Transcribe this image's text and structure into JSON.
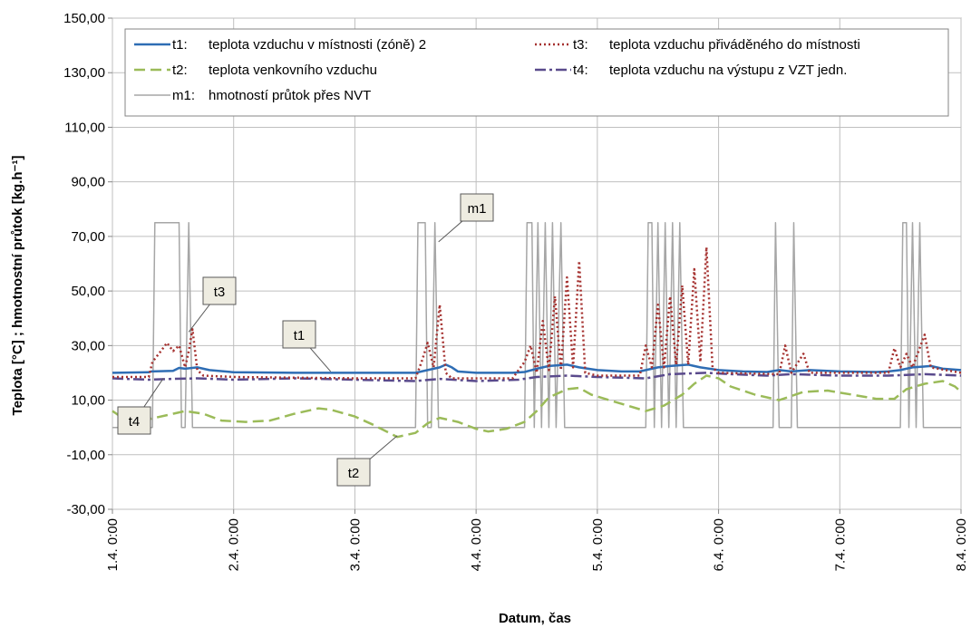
{
  "chart_data": {
    "type": "line",
    "xlabel": "Datum, čas",
    "ylabel": "Teplota [°C] ; hmotnostní průtok [kg.h⁻¹]",
    "ylim": [
      -30,
      150
    ],
    "xlim": [
      0,
      7
    ],
    "y_ticks": [
      "-30,00",
      "-10,00",
      "10,00",
      "30,00",
      "50,00",
      "70,00",
      "90,00",
      "110,00",
      "130,00",
      "150,00"
    ],
    "x_ticks": [
      "1.4.  0:00",
      "2.4.  0:00",
      "3.4.  0:00",
      "4.4.  0:00",
      "5.4.  0:00",
      "6.4.  0:00",
      "7.4.  0:00",
      "8.4.  0:00"
    ],
    "x_unit_note": "x values are days elapsed from 1.4. 0:00",
    "grid": true,
    "legend_position": "top",
    "colors": {
      "t1": "#2e6db4",
      "t2": "#9bbb59",
      "t3": "#a5312f",
      "t4": "#5a4a8c",
      "m1": "#a6a6a6"
    },
    "series": [
      {
        "key": "t1",
        "name": "teplota vzduchu v místnosti (zóně) 2",
        "legend_label": "t1:",
        "style": "solid",
        "points": [
          [
            0,
            20
          ],
          [
            0.3,
            20.2
          ],
          [
            0.32,
            20.5
          ],
          [
            0.5,
            20.7
          ],
          [
            0.55,
            21.8
          ],
          [
            0.6,
            21.5
          ],
          [
            0.7,
            22
          ],
          [
            0.8,
            21
          ],
          [
            1,
            20.2
          ],
          [
            1.5,
            20
          ],
          [
            2,
            20
          ],
          [
            2.5,
            20
          ],
          [
            2.55,
            20.5
          ],
          [
            2.7,
            22
          ],
          [
            2.75,
            23
          ],
          [
            2.8,
            22
          ],
          [
            2.85,
            20.5
          ],
          [
            3,
            20
          ],
          [
            3.3,
            20
          ],
          [
            3.4,
            20.3
          ],
          [
            3.5,
            21.5
          ],
          [
            3.6,
            22.5
          ],
          [
            3.75,
            23
          ],
          [
            3.85,
            22
          ],
          [
            4,
            21
          ],
          [
            4.2,
            20.5
          ],
          [
            4.35,
            20.5
          ],
          [
            4.4,
            21
          ],
          [
            4.5,
            22
          ],
          [
            4.6,
            22.5
          ],
          [
            4.75,
            23
          ],
          [
            4.85,
            22
          ],
          [
            5,
            21
          ],
          [
            5.2,
            20.5
          ],
          [
            5.4,
            20.3
          ],
          [
            5.5,
            21
          ],
          [
            5.6,
            20.5
          ],
          [
            5.75,
            21
          ],
          [
            6,
            20.5
          ],
          [
            6.3,
            20.3
          ],
          [
            6.4,
            20.5
          ],
          [
            6.5,
            21
          ],
          [
            6.6,
            22
          ],
          [
            6.75,
            22.5
          ],
          [
            6.85,
            21.5
          ],
          [
            7,
            21
          ]
        ]
      },
      {
        "key": "t2",
        "name": "teplota venkovního vzduchu",
        "legend_label": "t2:",
        "style": "dashed",
        "points": [
          [
            0,
            6
          ],
          [
            0.15,
            1.5
          ],
          [
            0.3,
            3
          ],
          [
            0.45,
            4.5
          ],
          [
            0.6,
            6
          ],
          [
            0.75,
            5
          ],
          [
            0.9,
            2.5
          ],
          [
            1.1,
            2
          ],
          [
            1.3,
            2.5
          ],
          [
            1.5,
            5
          ],
          [
            1.7,
            7
          ],
          [
            1.8,
            6.5
          ],
          [
            2,
            4
          ],
          [
            2.15,
            1
          ],
          [
            2.35,
            -3.5
          ],
          [
            2.5,
            -2
          ],
          [
            2.6,
            1.5
          ],
          [
            2.7,
            3.5
          ],
          [
            2.85,
            2
          ],
          [
            3,
            -0.5
          ],
          [
            3.1,
            -1.5
          ],
          [
            3.25,
            -0.5
          ],
          [
            3.4,
            2
          ],
          [
            3.5,
            6
          ],
          [
            3.6,
            11
          ],
          [
            3.75,
            14
          ],
          [
            3.85,
            14.5
          ],
          [
            3.95,
            12
          ],
          [
            4.1,
            10
          ],
          [
            4.25,
            8
          ],
          [
            4.4,
            6
          ],
          [
            4.55,
            8
          ],
          [
            4.7,
            12
          ],
          [
            4.8,
            16
          ],
          [
            4.9,
            19
          ],
          [
            5,
            18
          ],
          [
            5.1,
            15
          ],
          [
            5.3,
            12
          ],
          [
            5.5,
            10
          ],
          [
            5.7,
            13
          ],
          [
            5.9,
            13.5
          ],
          [
            6.1,
            12
          ],
          [
            6.3,
            10.5
          ],
          [
            6.45,
            10.5
          ],
          [
            6.55,
            14
          ],
          [
            6.7,
            16
          ],
          [
            6.85,
            17
          ],
          [
            6.95,
            15
          ],
          [
            7,
            13
          ]
        ]
      },
      {
        "key": "t3",
        "name": "teplota vzduchu přiváděného do místnosti",
        "legend_label": "t3:",
        "style": "dotted",
        "points": [
          [
            0,
            18.5
          ],
          [
            0.3,
            18.5
          ],
          [
            0.33,
            24
          ],
          [
            0.4,
            28
          ],
          [
            0.45,
            31
          ],
          [
            0.5,
            28
          ],
          [
            0.55,
            30
          ],
          [
            0.6,
            22
          ],
          [
            0.63,
            28
          ],
          [
            0.66,
            36
          ],
          [
            0.7,
            21
          ],
          [
            0.75,
            19
          ],
          [
            1,
            18.5
          ],
          [
            2,
            18
          ],
          [
            2.5,
            18
          ],
          [
            2.55,
            24
          ],
          [
            2.6,
            31
          ],
          [
            2.65,
            22
          ],
          [
            2.7,
            45
          ],
          [
            2.75,
            20
          ],
          [
            2.8,
            18
          ],
          [
            3.3,
            18
          ],
          [
            3.4,
            24
          ],
          [
            3.45,
            30
          ],
          [
            3.5,
            20
          ],
          [
            3.55,
            39
          ],
          [
            3.6,
            21
          ],
          [
            3.65,
            48
          ],
          [
            3.7,
            21
          ],
          [
            3.75,
            55
          ],
          [
            3.8,
            22
          ],
          [
            3.85,
            61
          ],
          [
            3.9,
            20
          ],
          [
            4,
            19
          ],
          [
            4.35,
            19
          ],
          [
            4.4,
            30
          ],
          [
            4.45,
            22
          ],
          [
            4.5,
            45
          ],
          [
            4.55,
            22
          ],
          [
            4.6,
            48
          ],
          [
            4.65,
            23
          ],
          [
            4.7,
            52
          ],
          [
            4.75,
            23
          ],
          [
            4.8,
            58
          ],
          [
            4.85,
            24
          ],
          [
            4.9,
            66
          ],
          [
            4.95,
            22
          ],
          [
            5,
            20
          ],
          [
            5.5,
            19.5
          ],
          [
            5.55,
            30
          ],
          [
            5.6,
            20
          ],
          [
            5.7,
            27
          ],
          [
            5.75,
            20
          ],
          [
            6,
            20
          ],
          [
            6.4,
            20
          ],
          [
            6.45,
            29
          ],
          [
            6.5,
            22
          ],
          [
            6.55,
            27
          ],
          [
            6.6,
            22
          ],
          [
            6.7,
            34
          ],
          [
            6.75,
            22
          ],
          [
            7,
            20
          ]
        ]
      },
      {
        "key": "t4",
        "name": "teplota vzduchu na výstupu z VZT jedn.",
        "legend_label": "t4:",
        "style": "dashdot",
        "points": [
          [
            0,
            18
          ],
          [
            0.3,
            17.5
          ],
          [
            0.5,
            17.8
          ],
          [
            0.7,
            18
          ],
          [
            1,
            17.5
          ],
          [
            1.5,
            18
          ],
          [
            2,
            17.5
          ],
          [
            2.5,
            17
          ],
          [
            2.7,
            17.8
          ],
          [
            3,
            17
          ],
          [
            3.35,
            17.5
          ],
          [
            3.5,
            18.5
          ],
          [
            3.75,
            19
          ],
          [
            4,
            18.5
          ],
          [
            4.4,
            18
          ],
          [
            4.6,
            19.5
          ],
          [
            4.9,
            20
          ],
          [
            5.1,
            19.5
          ],
          [
            5.4,
            19
          ],
          [
            5.6,
            19.5
          ],
          [
            6,
            19
          ],
          [
            6.4,
            19
          ],
          [
            6.7,
            19.5
          ],
          [
            7,
            19
          ]
        ]
      },
      {
        "key": "m1",
        "name": "hmotností průtok přes NVT",
        "legend_label": "m1:",
        "style": "solid-thin",
        "points": [
          [
            0,
            0
          ],
          [
            0.33,
            0
          ],
          [
            0.35,
            75
          ],
          [
            0.55,
            75
          ],
          [
            0.57,
            0
          ],
          [
            0.6,
            0
          ],
          [
            0.63,
            75
          ],
          [
            0.66,
            0
          ],
          [
            2.5,
            0
          ],
          [
            2.52,
            75
          ],
          [
            2.58,
            75
          ],
          [
            2.6,
            0
          ],
          [
            2.63,
            0
          ],
          [
            2.66,
            75
          ],
          [
            2.69,
            0
          ],
          [
            3.4,
            0
          ],
          [
            3.42,
            75
          ],
          [
            3.46,
            75
          ],
          [
            3.48,
            0
          ],
          [
            3.51,
            75
          ],
          [
            3.54,
            0
          ],
          [
            3.57,
            75
          ],
          [
            3.6,
            0
          ],
          [
            3.63,
            75
          ],
          [
            3.66,
            0
          ],
          [
            3.7,
            75
          ],
          [
            3.73,
            0
          ],
          [
            4.4,
            0
          ],
          [
            4.42,
            75
          ],
          [
            4.45,
            75
          ],
          [
            4.47,
            0
          ],
          [
            4.5,
            75
          ],
          [
            4.53,
            0
          ],
          [
            4.56,
            75
          ],
          [
            4.59,
            0
          ],
          [
            4.62,
            75
          ],
          [
            4.65,
            0
          ],
          [
            4.68,
            75
          ],
          [
            4.71,
            0
          ],
          [
            5.45,
            0
          ],
          [
            5.47,
            75
          ],
          [
            5.5,
            0
          ],
          [
            5.6,
            0
          ],
          [
            5.62,
            75
          ],
          [
            5.65,
            0
          ],
          [
            6.5,
            0
          ],
          [
            6.52,
            75
          ],
          [
            6.55,
            75
          ],
          [
            6.57,
            0
          ],
          [
            6.6,
            75
          ],
          [
            6.63,
            0
          ],
          [
            6.66,
            75
          ],
          [
            6.69,
            0
          ],
          [
            7,
            0
          ]
        ]
      }
    ],
    "callouts": [
      {
        "label": "t1",
        "x": 1.8,
        "y": 20.5
      },
      {
        "label": "t2",
        "x": 2.35,
        "y": -3
      },
      {
        "label": "t3",
        "x": 0.63,
        "y": 35
      },
      {
        "label": "t4",
        "x": 0.42,
        "y": 18
      },
      {
        "label": "m1",
        "x": 2.69,
        "y": 68
      }
    ]
  }
}
